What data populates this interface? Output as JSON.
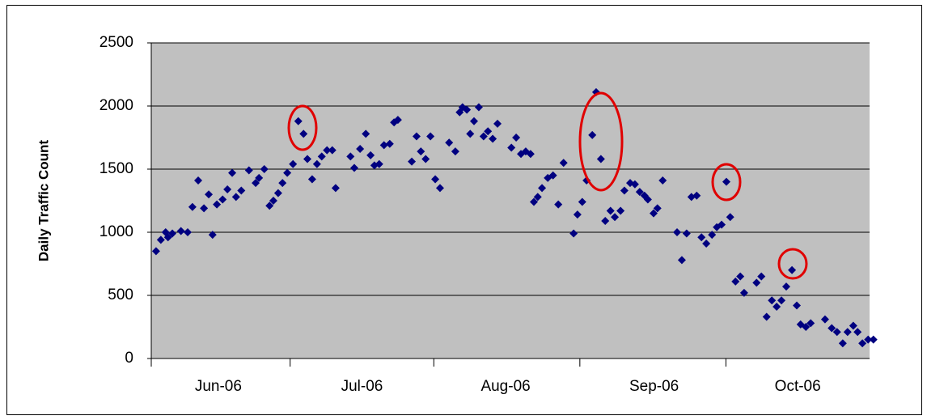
{
  "chart_data": {
    "type": "scatter",
    "y_label": "Daily Traffic Count",
    "x": [
      1,
      2,
      3,
      3.5,
      4.4,
      6.2,
      7.6,
      8.6,
      9.8,
      11,
      12,
      12.8,
      13.7,
      14.9,
      15.9,
      16.9,
      17.7,
      18.8,
      20.4,
      21.8,
      22.5,
      23.6,
      24.7,
      25.5,
      26.5,
      27.4,
      28.4,
      29.6,
      30.7,
      31.8,
      32.6,
      33.6,
      34.6,
      35.6,
      36.7,
      37.8,
      38.5,
      41.6,
      42.4,
      43.6,
      44.8,
      45.8,
      46.6,
      47.6,
      48.6,
      49.8,
      50.7,
      51.5,
      54.4,
      55.4,
      56.3,
      57.3,
      58.3,
      59.3,
      60.3,
      62.2,
      63.5,
      64.4,
      65,
      65.9,
      66.6,
      67.4,
      68.4,
      69.4,
      70.3,
      71.3,
      72.3,
      75.2,
      76.2,
      77.2,
      78.2,
      79.2,
      79.9,
      80.7,
      81.6,
      82.8,
      83.9,
      85,
      86.1,
      88.2,
      89,
      90,
      90.9,
      92.1,
      92.9,
      93.9,
      94.8,
      95.9,
      96.8,
      98,
      98.8,
      100,
      101,
      102,
      103,
      103.7,
      104.9,
      105.7,
      106.8,
      109.8,
      110.8,
      111.8,
      112.8,
      113.9,
      114.9,
      115.9,
      117.1,
      118.1,
      119.1,
      120.1,
      120.9,
      122,
      123,
      123.8,
      126.4,
      127.4,
      128.5,
      129.6,
      130.6,
      131.6,
      132.6,
      133.8,
      134.8,
      135.6,
      136.7,
      137.7,
      140.7,
      142.1,
      143.2,
      144.4,
      145.4,
      146.6,
      147.5,
      148.5,
      149.7,
      150.8
    ],
    "values": [
      850,
      940,
      1000,
      960,
      990,
      1010,
      1000,
      1200,
      1410,
      1190,
      1300,
      980,
      1220,
      1260,
      1340,
      1470,
      1280,
      1330,
      1490,
      1390,
      1430,
      1500,
      1210,
      1250,
      1310,
      1390,
      1470,
      1540,
      1880,
      1780,
      1580,
      1420,
      1540,
      1600,
      1650,
      1650,
      1350,
      1600,
      1510,
      1660,
      1780,
      1610,
      1530,
      1540,
      1690,
      1700,
      1870,
      1890,
      1560,
      1760,
      1640,
      1580,
      1760,
      1420,
      1350,
      1710,
      1640,
      1950,
      1990,
      1970,
      1780,
      1880,
      1990,
      1760,
      1800,
      1740,
      1860,
      1670,
      1750,
      1620,
      1640,
      1620,
      1240,
      1280,
      1350,
      1430,
      1450,
      1220,
      1550,
      990,
      1140,
      1240,
      1410,
      1770,
      2110,
      1580,
      1090,
      1170,
      1120,
      1170,
      1330,
      1390,
      1380,
      1320,
      1290,
      1260,
      1150,
      1190,
      1410,
      1000,
      780,
      990,
      1280,
      1290,
      960,
      910,
      980,
      1040,
      1060,
      1400,
      1120,
      610,
      650,
      520,
      600,
      650,
      330,
      460,
      410,
      460,
      570,
      700,
      420,
      270,
      250,
      280,
      310,
      240,
      210,
      120,
      210,
      260,
      210,
      120,
      150,
      150
    ],
    "color": "#000080",
    "xlim": [
      0,
      150
    ],
    "xticks": [
      {
        "value": 14,
        "label": "Jun-06"
      },
      {
        "value": 44,
        "label": "Jul-06"
      },
      {
        "value": 74,
        "label": "Aug-06"
      },
      {
        "value": 105,
        "label": "Sep-06"
      },
      {
        "value": 135,
        "label": "Oct-06"
      }
    ],
    "ylim": [
      0,
      2500
    ],
    "yticks": [
      0,
      500,
      1000,
      1500,
      2000,
      2500
    ],
    "grid": true
  }
}
